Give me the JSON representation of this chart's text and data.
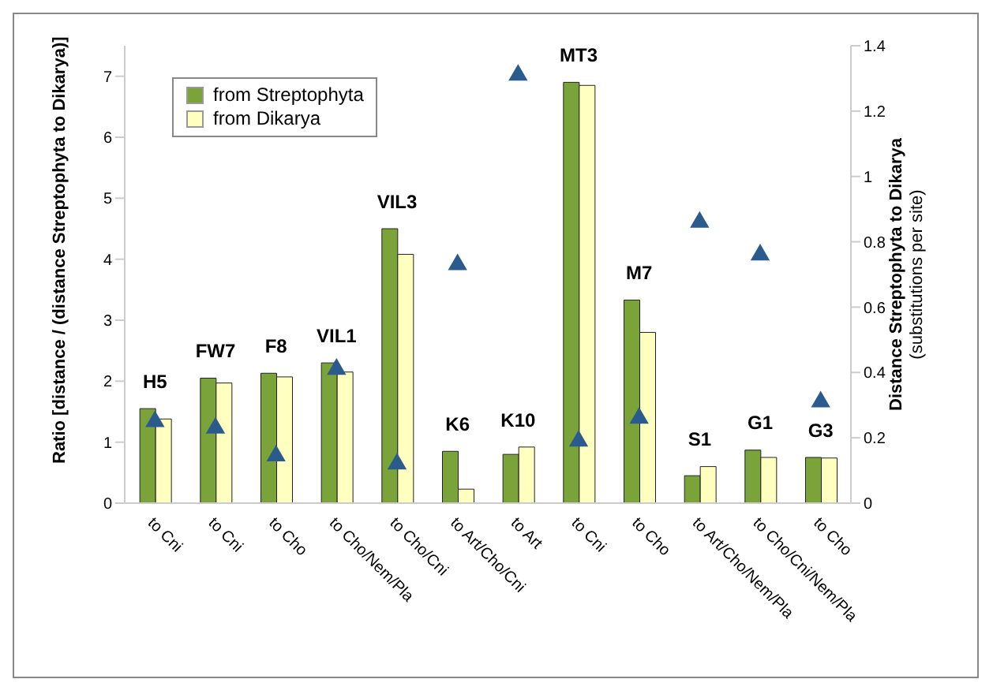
{
  "chart_data": {
    "type": "bar",
    "ylabel": "Ratio [distance / (distance Streptophyta to Dikarya)]",
    "y2label": "Distance Streptophyta to Dikarya (substitutions per site)",
    "categories": [
      "to Cni",
      "to Cni",
      "to Cho",
      "to Cho/Nem/Pla",
      "to Cho/Cni",
      "to Art/Cho/Cni",
      "to Art",
      "to Cni",
      "to Cho",
      "to Art/Cho/Nem/Pla",
      "to Cho/Cni/Nem/Pla",
      "to Cho"
    ],
    "series": [
      {
        "name": "from Streptophyta",
        "color": "#7aa33a",
        "values": [
          1.55,
          2.05,
          2.13,
          2.3,
          4.5,
          0.85,
          0.8,
          6.9,
          3.33,
          0.45,
          0.87,
          0.75
        ]
      },
      {
        "name": "from Dikarya",
        "color": "#ffffc0",
        "values": [
          1.38,
          1.97,
          2.07,
          2.15,
          4.08,
          0.23,
          0.92,
          6.85,
          2.8,
          0.6,
          0.75,
          0.74
        ]
      },
      {
        "type": "scatter",
        "axis": "y2",
        "color": "#2b5b8c",
        "marker": "triangle",
        "values": [
          0.25,
          0.23,
          0.145,
          0.41,
          0.12,
          0.73,
          1.31,
          0.19,
          0.26,
          0.86,
          0.76,
          0.31
        ]
      }
    ],
    "annotations": [
      "H5",
      "FW7",
      "F8",
      "VIL1",
      "VIL3",
      "K6",
      "K10",
      "MT3",
      "M7",
      "S1",
      "G1",
      "G3"
    ],
    "ylim": [
      0,
      7.5
    ],
    "yticks": [
      0,
      1,
      2,
      3,
      4,
      5,
      6,
      7
    ],
    "y2lim": [
      0,
      1.4
    ],
    "y2ticks": [
      0,
      0.2,
      0.4,
      0.6,
      0.8,
      1,
      1.2,
      1.4
    ],
    "grid": false,
    "legend": "top left"
  }
}
